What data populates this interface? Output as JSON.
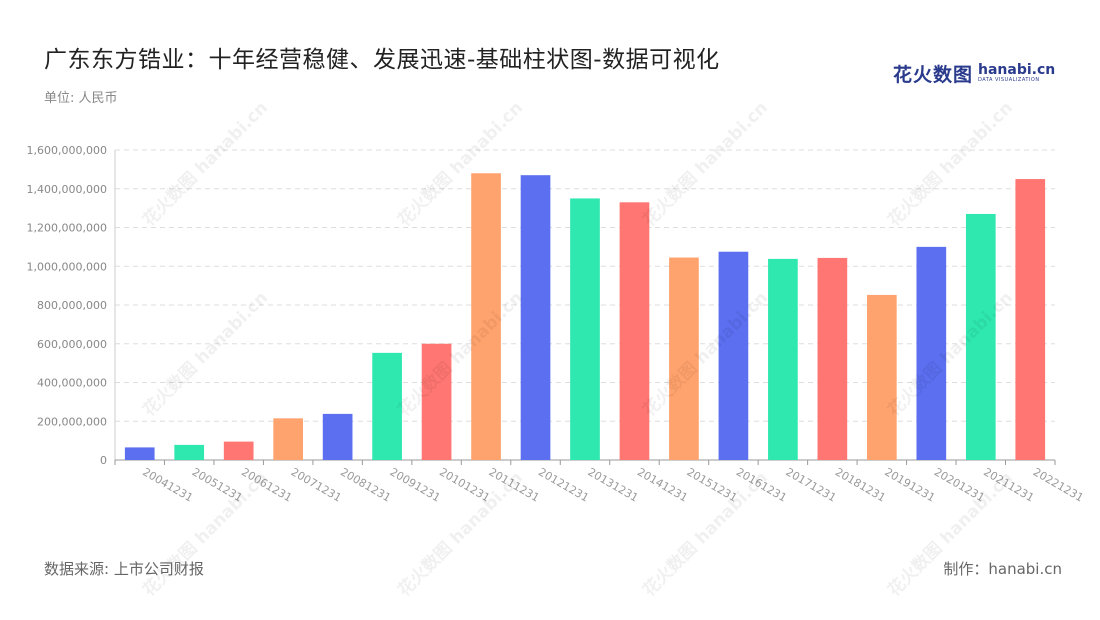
{
  "header": {
    "title": "广东东方锆业：十年经营稳健、发展迅速-基础柱状图-数据可视化",
    "unit": "单位: 人民币"
  },
  "logo": {
    "cn": "花火数图",
    "en": "hanabi.cn",
    "tagline": "DATA VISUALIZATION"
  },
  "footer": {
    "source": "数据来源: 上市公司财报",
    "credit": "制作：hanabi.cn"
  },
  "watermark": "花火数图 hanabi.cn",
  "chart_data": {
    "type": "bar",
    "title": "广东东方锆业：十年经营稳健、发展迅速-基础柱状图-数据可视化",
    "ylabel": "",
    "xlabel": "",
    "ylim": [
      0,
      1600000000
    ],
    "yticks": [
      0,
      200000000,
      400000000,
      600000000,
      800000000,
      1000000000,
      1200000000,
      1400000000,
      1600000000
    ],
    "grid": true,
    "legend": "none",
    "colors": [
      "#5b6ff0",
      "#2ee8b0",
      "#ff7672",
      "#ffa36e"
    ],
    "categories": [
      "20041231",
      "20051231",
      "20061231",
      "20071231",
      "20081231",
      "20091231",
      "20101231",
      "20111231",
      "20121231",
      "20131231",
      "20141231",
      "20151231",
      "20161231",
      "20171231",
      "20181231",
      "20191231",
      "20201231",
      "20211231",
      "20221231"
    ],
    "values": [
      65000000,
      78000000,
      95000000,
      215000000,
      238000000,
      553000000,
      600000000,
      1480000000,
      1470000000,
      1350000000,
      1330000000,
      1045000000,
      1075000000,
      1038000000,
      1043000000,
      852000000,
      1100000000,
      1270000000,
      1450000000
    ],
    "bar_colors": [
      "#5b6ff0",
      "#2ee8b0",
      "#ff7672",
      "#ffa36e",
      "#5b6ff0",
      "#2ee8b0",
      "#ff7672",
      "#ffa36e",
      "#5b6ff0",
      "#2ee8b0",
      "#ff7672",
      "#ffa36e",
      "#5b6ff0",
      "#2ee8b0",
      "#ff7672",
      "#ffa36e",
      "#5b6ff0",
      "#2ee8b0",
      "#ff7672"
    ]
  }
}
